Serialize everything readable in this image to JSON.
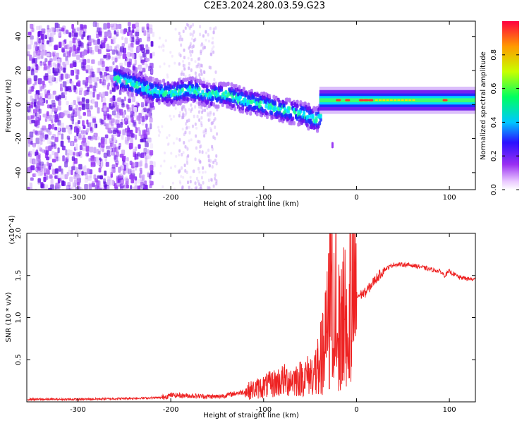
{
  "title": "C2E3.2024.280.03.59.G23",
  "chart_data": [
    {
      "type": "heatmap",
      "title": "C2E3.2024.280.03.59.G23",
      "xlabel": "Height of straight line (km)",
      "ylabel": "Frequency (Hz)",
      "xlim": [
        -355,
        128
      ],
      "ylim": [
        -50,
        49
      ],
      "xticks": [
        -300,
        -200,
        -100,
        0,
        100
      ],
      "xtick_labels": [
        "-300",
        "-200",
        "-100",
        "0",
        "100"
      ],
      "yticks": [
        -40,
        -20,
        0,
        20,
        40
      ],
      "ytick_labels": [
        "-40",
        "-20",
        "0",
        "20",
        "40"
      ],
      "colorbar": {
        "label": "Normalized spectral amplitude",
        "range": [
          0,
          1
        ],
        "ticks": [
          0.0,
          0.2,
          0.4,
          0.6,
          0.8
        ],
        "tick_labels": [
          "0.0",
          "0.2",
          "0.4",
          "0.6",
          "0.8"
        ]
      },
      "ridge": {
        "x": [
          -260,
          -240,
          -220,
          -200,
          -180,
          -160,
          -140,
          -120,
          -100,
          -80,
          -60,
          -45,
          -35,
          -20,
          0,
          50,
          100,
          128
        ],
        "y": [
          17,
          13,
          9,
          8,
          10,
          7,
          7,
          3,
          1,
          -2,
          -4,
          -8,
          -3,
          1,
          2,
          2,
          3,
          3
        ]
      }
    },
    {
      "type": "line",
      "xlabel": "Height of straight line (km)",
      "ylabel": "SNR (10 * v/v)",
      "y_multiplier": "(x10^4)",
      "xlim": [
        -355,
        128
      ],
      "ylim": [
        0,
        2.0
      ],
      "xticks": [
        -300,
        -200,
        -100,
        0,
        100
      ],
      "xtick_labels": [
        "-300",
        "-200",
        "-100",
        "0",
        "100"
      ],
      "yticks": [
        0.5,
        1.0,
        1.5,
        2.0
      ],
      "ytick_labels": [
        "0.5",
        "1.0",
        "1.5",
        "2.0"
      ],
      "line_color": "#ee2222",
      "series": [
        {
          "x": [
            -355,
            -300,
            -250,
            -210,
            -200,
            -150,
            -120,
            -100,
            -80,
            -60,
            -45,
            -35,
            -30,
            -25,
            -20,
            -15,
            -10,
            -5,
            0,
            10,
            20,
            30,
            40,
            50,
            60,
            70,
            80,
            90,
            95,
            100,
            110,
            120,
            128
          ],
          "y": [
            0.03,
            0.03,
            0.04,
            0.05,
            0.08,
            0.06,
            0.12,
            0.18,
            0.25,
            0.28,
            0.35,
            0.6,
            1.0,
            1.8,
            1.3,
            1.2,
            1.3,
            1.2,
            1.25,
            1.3,
            1.45,
            1.57,
            1.63,
            1.63,
            1.62,
            1.6,
            1.57,
            1.55,
            1.5,
            1.55,
            1.48,
            1.46,
            1.45
          ]
        }
      ]
    }
  ]
}
